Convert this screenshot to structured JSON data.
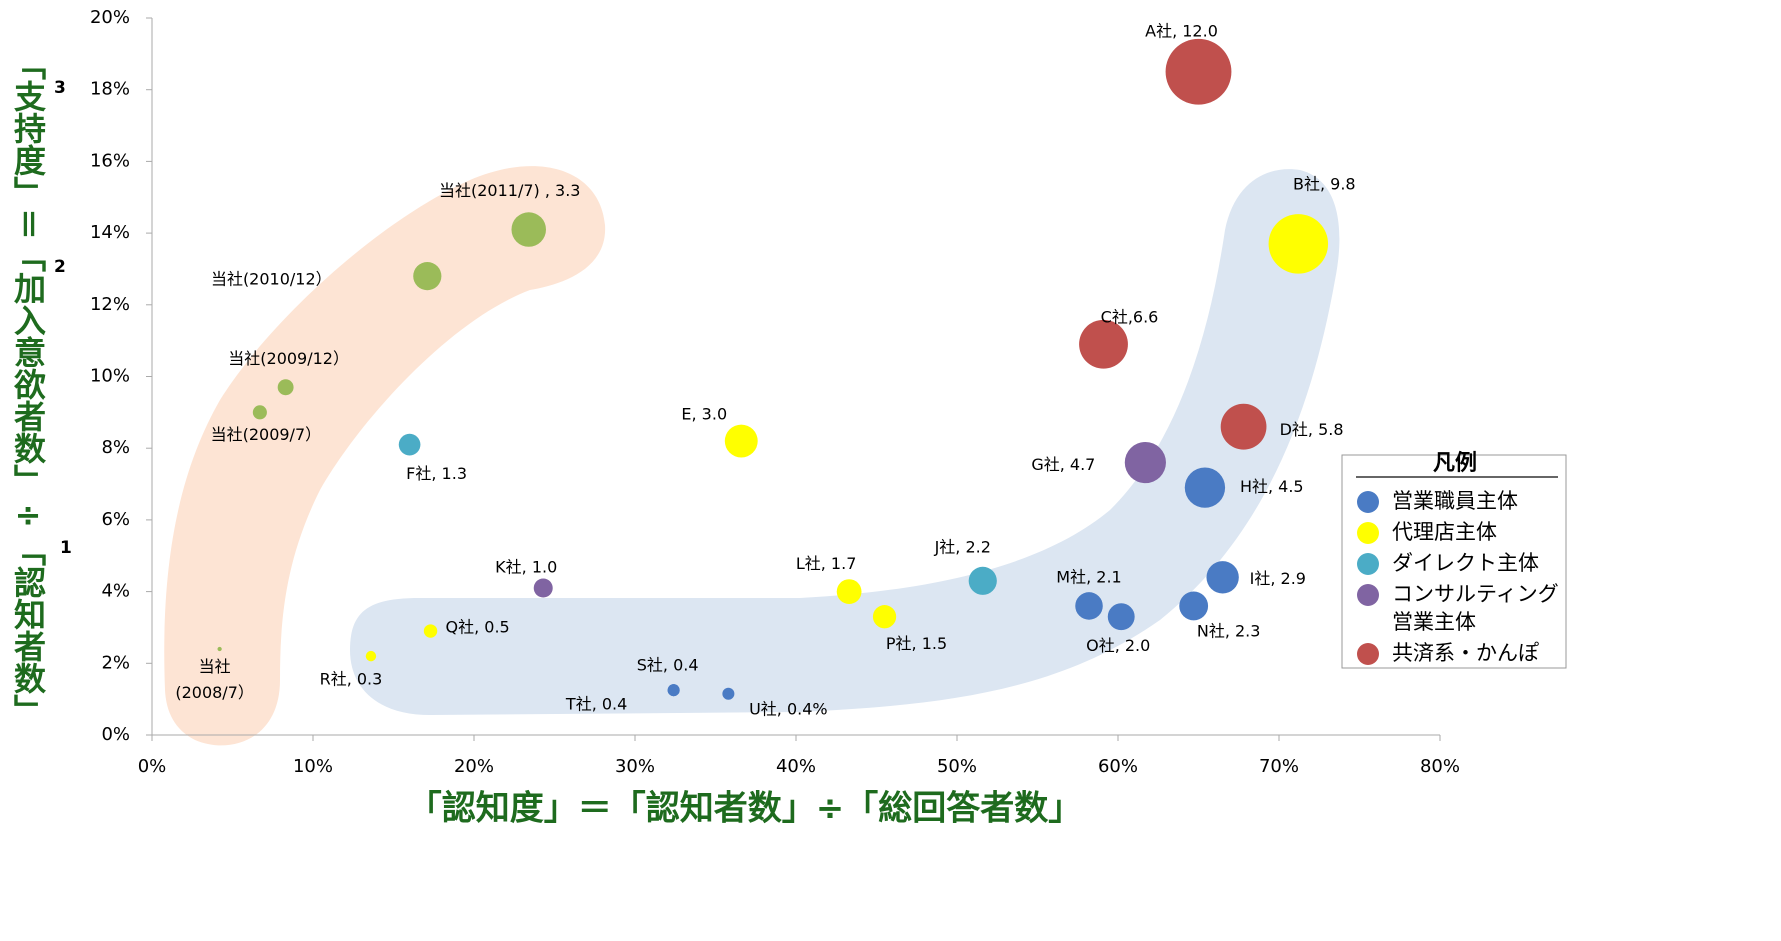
{
  "chart_data": {
    "type": "bubble",
    "xlabel": "「認知度」＝「認知者数」÷「総回答者数」",
    "ylabel": "「支持度」＝「加入意欲者数」÷「認知者数」",
    "ylabel_marks": [
      "3",
      "2",
      "1"
    ],
    "legend_title": "凡例",
    "xlim": [
      0,
      80
    ],
    "ylim": [
      0,
      20
    ],
    "xticks": [
      {
        "value": 0,
        "label": "0%"
      },
      {
        "value": 10,
        "label": "10%"
      },
      {
        "value": 20,
        "label": "20%"
      },
      {
        "value": 30,
        "label": "30%"
      },
      {
        "value": 40,
        "label": "40%"
      },
      {
        "value": 50,
        "label": "50%"
      },
      {
        "value": 60,
        "label": "60%"
      },
      {
        "value": 70,
        "label": "70%"
      },
      {
        "value": 80,
        "label": "80%"
      }
    ],
    "yticks": [
      {
        "value": 0,
        "label": "0%"
      },
      {
        "value": 2,
        "label": "2%"
      },
      {
        "value": 4,
        "label": "4%"
      },
      {
        "value": 6,
        "label": "6%"
      },
      {
        "value": 8,
        "label": "8%"
      },
      {
        "value": 10,
        "label": "10%"
      },
      {
        "value": 12,
        "label": "12%"
      },
      {
        "value": 14,
        "label": "14%"
      },
      {
        "value": 16,
        "label": "16%"
      },
      {
        "value": 18,
        "label": "18%"
      },
      {
        "value": 20,
        "label": "20%"
      }
    ],
    "series": [
      {
        "name": "営業職員主体",
        "color": "#4a7bc4",
        "x": [
          65.4,
          66.5,
          58.2,
          64.7,
          60.2,
          32.4,
          32.4,
          35.8
        ],
        "values": [
          6.9,
          4.4,
          3.6,
          3.6,
          3.3,
          1.25,
          1.25,
          1.15
        ],
        "sizes": [
          4.5,
          2.9,
          2.1,
          2.3,
          2.0,
          0.4,
          0.4,
          0.4
        ],
        "labels": [
          "H社, 4.5",
          "I社, 2.9",
          "M社, 2.1",
          "N社, 2.3",
          "O社, 2.0",
          "S社, 0.4",
          "T社, 0.4",
          "U社, 0.4%"
        ]
      },
      {
        "name": "代理店主体",
        "color": "#ffff00",
        "x": [
          71.2,
          36.6,
          43.3,
          45.5,
          17.3,
          13.6
        ],
        "values": [
          13.7,
          8.2,
          4.0,
          3.3,
          2.9,
          2.2
        ],
        "sizes": [
          9.8,
          3.0,
          1.7,
          1.5,
          0.5,
          0.3
        ],
        "labels": [
          "B社, 9.8",
          "E, 3.0",
          "L社, 1.7",
          "P社, 1.5",
          "Q社, 0.5",
          "R社, 0.3"
        ]
      },
      {
        "name": "ダイレクト主体",
        "color": "#4bacc6",
        "x": [
          16.0,
          51.6
        ],
        "values": [
          8.1,
          4.3
        ],
        "sizes": [
          1.3,
          2.2
        ],
        "labels": [
          "F社, 1.3",
          "J社, 2.2"
        ]
      },
      {
        "name": "コンサルティング\n営業主体",
        "color": "#8064a2",
        "x": [
          61.7,
          24.3
        ],
        "values": [
          7.6,
          4.1
        ],
        "sizes": [
          4.7,
          1.0
        ],
        "labels": [
          "G社, 4.7",
          "K社, 1.0"
        ]
      },
      {
        "name": "共済系・かんぽ",
        "color": "#c0504d",
        "x": [
          65.0,
          59.1,
          67.8
        ],
        "values": [
          18.5,
          10.9,
          8.6
        ],
        "sizes": [
          12.0,
          6.6,
          5.8
        ],
        "labels": [
          "A社, 12.0",
          "C社,6.6",
          "D社, 5.8"
        ]
      },
      {
        "color": "#9bbb59",
        "x": [
          23.4,
          17.1,
          8.3,
          6.7,
          4.2
        ],
        "values": [
          14.1,
          12.8,
          9.7,
          9.0,
          2.4
        ],
        "sizes": [
          3.3,
          2.2,
          0.7,
          0.55,
          0.05
        ],
        "labels": [
          "当社(2011/7) , 3.3",
          "当社(2010/12）",
          "当社(2009/12）",
          "当社(2009/7）",
          "当社\n(2008/7）"
        ]
      }
    ]
  }
}
